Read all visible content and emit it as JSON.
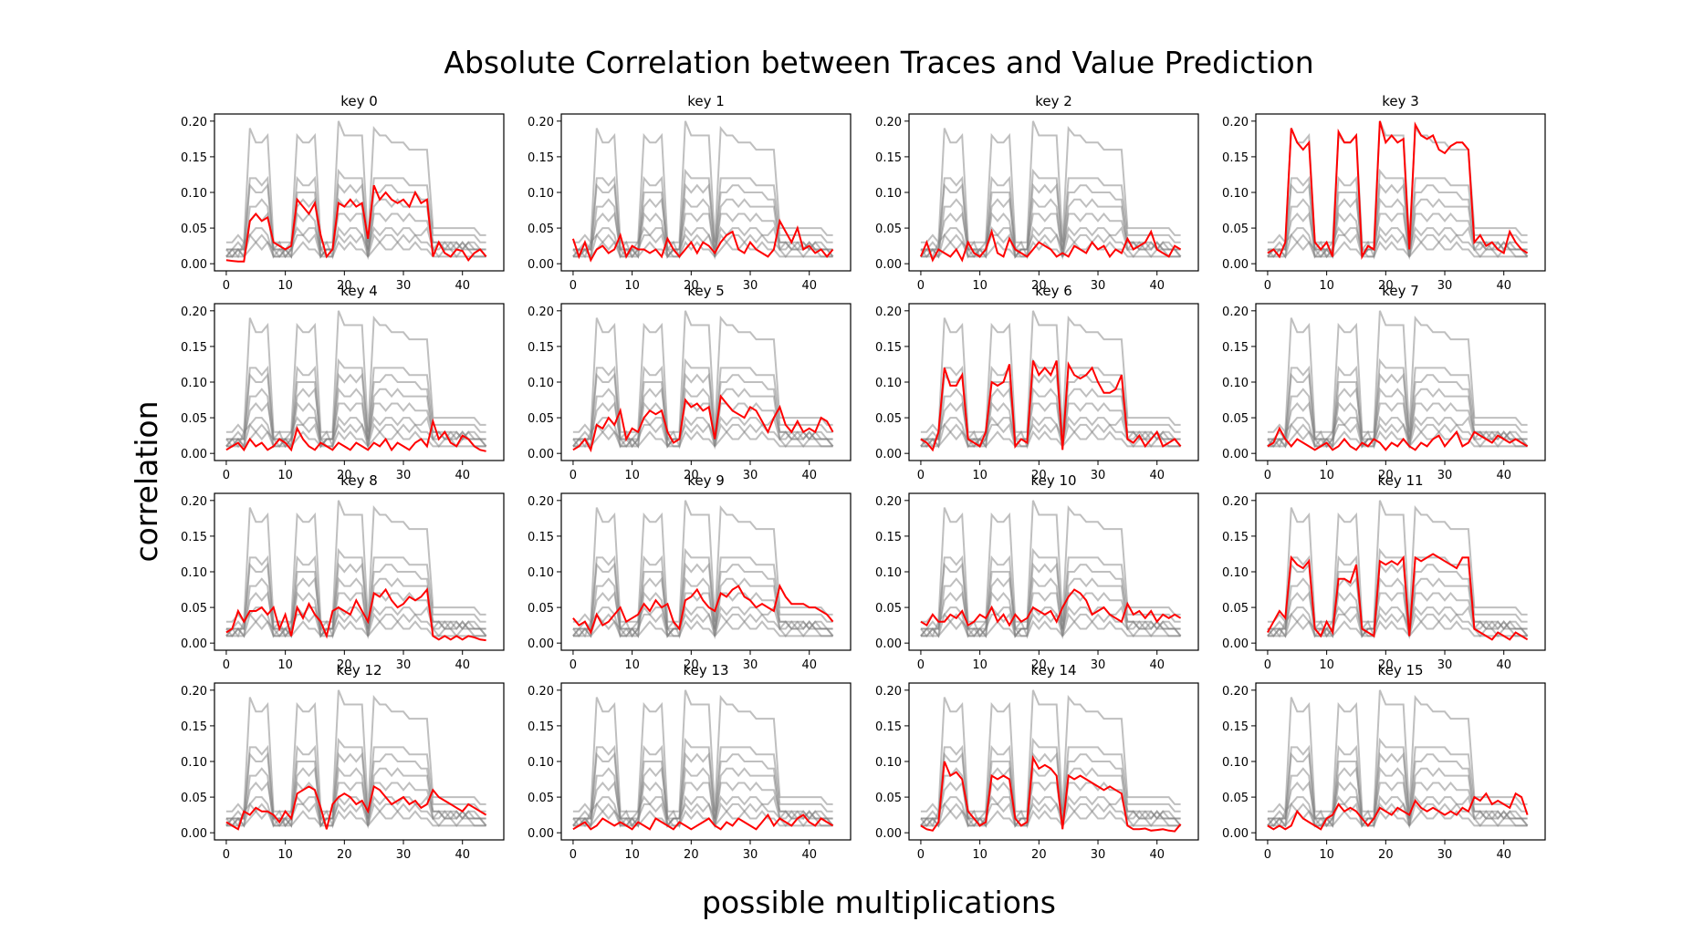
{
  "title": "Absolute Correlation between Traces and Value Prediction",
  "xlabel": "possible multiplications",
  "ylabel": "correlation",
  "chart_data": {
    "type": "line",
    "title": "Absolute Correlation between Traces and Value Prediction",
    "xlabel": "possible multiplications",
    "ylabel": "correlation",
    "xlim": [
      -2,
      47
    ],
    "ylim": [
      -0.01,
      0.21
    ],
    "xticks": [
      0,
      10,
      20,
      30,
      40
    ],
    "yticks": [
      0.0,
      0.05,
      0.1,
      0.15,
      0.2
    ],
    "grid": false,
    "colors": {
      "highlight": "#ff0000",
      "background": "#808080"
    },
    "grey_profiles": [
      [
        0.03,
        0.03,
        0.04,
        0.03,
        0.19,
        0.17,
        0.17,
        0.18,
        0.03,
        0.03,
        0.03,
        0.03,
        0.18,
        0.17,
        0.17,
        0.18,
        0.03,
        0.03,
        0.03,
        0.2,
        0.18,
        0.18,
        0.18,
        0.18,
        0.03,
        0.19,
        0.18,
        0.18,
        0.17,
        0.17,
        0.17,
        0.16,
        0.16,
        0.16,
        0.16,
        0.05,
        0.05,
        0.05,
        0.05,
        0.05,
        0.05,
        0.05,
        0.05,
        0.04,
        0.04
      ],
      [
        0.02,
        0.02,
        0.03,
        0.02,
        0.12,
        0.12,
        0.11,
        0.12,
        0.02,
        0.02,
        0.02,
        0.02,
        0.12,
        0.11,
        0.11,
        0.12,
        0.02,
        0.02,
        0.02,
        0.13,
        0.12,
        0.12,
        0.12,
        0.12,
        0.02,
        0.12,
        0.12,
        0.12,
        0.12,
        0.12,
        0.12,
        0.11,
        0.11,
        0.11,
        0.11,
        0.04,
        0.04,
        0.04,
        0.04,
        0.04,
        0.04,
        0.04,
        0.04,
        0.03,
        0.03
      ],
      [
        0.01,
        0.02,
        0.02,
        0.02,
        0.11,
        0.1,
        0.1,
        0.11,
        0.02,
        0.01,
        0.02,
        0.01,
        0.1,
        0.1,
        0.1,
        0.1,
        0.01,
        0.02,
        0.02,
        0.11,
        0.1,
        0.11,
        0.1,
        0.11,
        0.02,
        0.1,
        0.1,
        0.11,
        0.11,
        0.1,
        0.1,
        0.1,
        0.1,
        0.09,
        0.09,
        0.03,
        0.03,
        0.03,
        0.03,
        0.02,
        0.03,
        0.02,
        0.02,
        0.02,
        0.02
      ],
      [
        0.02,
        0.01,
        0.02,
        0.01,
        0.08,
        0.08,
        0.09,
        0.08,
        0.01,
        0.02,
        0.01,
        0.02,
        0.08,
        0.09,
        0.08,
        0.09,
        0.02,
        0.01,
        0.01,
        0.09,
        0.08,
        0.08,
        0.09,
        0.08,
        0.01,
        0.08,
        0.09,
        0.09,
        0.08,
        0.09,
        0.08,
        0.08,
        0.08,
        0.08,
        0.08,
        0.02,
        0.02,
        0.03,
        0.02,
        0.03,
        0.02,
        0.03,
        0.02,
        0.02,
        0.01
      ],
      [
        0.01,
        0.01,
        0.02,
        0.02,
        0.06,
        0.07,
        0.06,
        0.07,
        0.02,
        0.02,
        0.02,
        0.01,
        0.07,
        0.06,
        0.07,
        0.06,
        0.01,
        0.02,
        0.02,
        0.07,
        0.07,
        0.06,
        0.07,
        0.07,
        0.01,
        0.07,
        0.07,
        0.06,
        0.07,
        0.07,
        0.06,
        0.07,
        0.06,
        0.06,
        0.06,
        0.03,
        0.03,
        0.02,
        0.03,
        0.03,
        0.02,
        0.03,
        0.03,
        0.02,
        0.02
      ],
      [
        0.02,
        0.02,
        0.01,
        0.03,
        0.04,
        0.05,
        0.05,
        0.04,
        0.01,
        0.01,
        0.02,
        0.03,
        0.05,
        0.04,
        0.05,
        0.05,
        0.02,
        0.03,
        0.01,
        0.05,
        0.04,
        0.05,
        0.05,
        0.04,
        0.02,
        0.05,
        0.04,
        0.05,
        0.05,
        0.04,
        0.05,
        0.05,
        0.04,
        0.04,
        0.05,
        0.02,
        0.03,
        0.02,
        0.02,
        0.02,
        0.03,
        0.02,
        0.02,
        0.02,
        0.01
      ],
      [
        0.01,
        0.02,
        0.02,
        0.01,
        0.04,
        0.03,
        0.04,
        0.03,
        0.02,
        0.03,
        0.01,
        0.02,
        0.04,
        0.04,
        0.03,
        0.04,
        0.01,
        0.02,
        0.02,
        0.04,
        0.03,
        0.04,
        0.03,
        0.04,
        0.01,
        0.04,
        0.03,
        0.04,
        0.04,
        0.03,
        0.04,
        0.03,
        0.04,
        0.03,
        0.03,
        0.02,
        0.01,
        0.02,
        0.02,
        0.01,
        0.02,
        0.02,
        0.01,
        0.01,
        0.01
      ],
      [
        0.01,
        0.01,
        0.01,
        0.01,
        0.02,
        0.03,
        0.02,
        0.03,
        0.01,
        0.01,
        0.01,
        0.01,
        0.02,
        0.03,
        0.02,
        0.02,
        0.01,
        0.01,
        0.01,
        0.03,
        0.02,
        0.03,
        0.02,
        0.02,
        0.01,
        0.02,
        0.03,
        0.02,
        0.02,
        0.03,
        0.02,
        0.02,
        0.03,
        0.02,
        0.02,
        0.01,
        0.01,
        0.01,
        0.01,
        0.01,
        0.01,
        0.01,
        0.01,
        0.01,
        0.01
      ]
    ],
    "panels": [
      {
        "title": "key 0",
        "red": [
          0.005,
          0.004,
          0.003,
          0.003,
          0.06,
          0.07,
          0.06,
          0.065,
          0.03,
          0.025,
          0.02,
          0.025,
          0.09,
          0.08,
          0.07,
          0.085,
          0.04,
          0.01,
          0.02,
          0.085,
          0.08,
          0.09,
          0.08,
          0.085,
          0.035,
          0.11,
          0.09,
          0.1,
          0.09,
          0.085,
          0.09,
          0.08,
          0.1,
          0.085,
          0.09,
          0.01,
          0.03,
          0.015,
          0.01,
          0.02,
          0.018,
          0.005,
          0.015,
          0.02,
          0.01
        ]
      },
      {
        "title": "key 1",
        "red": [
          0.035,
          0.01,
          0.03,
          0.005,
          0.02,
          0.025,
          0.015,
          0.02,
          0.04,
          0.01,
          0.025,
          0.02,
          0.02,
          0.015,
          0.02,
          0.01,
          0.035,
          0.02,
          0.01,
          0.02,
          0.03,
          0.015,
          0.03,
          0.025,
          0.015,
          0.03,
          0.04,
          0.045,
          0.02,
          0.015,
          0.03,
          0.02,
          0.015,
          0.01,
          0.02,
          0.06,
          0.045,
          0.03,
          0.05,
          0.02,
          0.025,
          0.015,
          0.02,
          0.01,
          0.02
        ]
      },
      {
        "title": "key 2",
        "red": [
          0.01,
          0.03,
          0.005,
          0.02,
          0.015,
          0.01,
          0.02,
          0.005,
          0.03,
          0.015,
          0.01,
          0.02,
          0.045,
          0.015,
          0.01,
          0.035,
          0.02,
          0.015,
          0.01,
          0.02,
          0.03,
          0.025,
          0.02,
          0.01,
          0.015,
          0.01,
          0.025,
          0.02,
          0.015,
          0.03,
          0.02,
          0.025,
          0.01,
          0.02,
          0.015,
          0.035,
          0.02,
          0.025,
          0.03,
          0.045,
          0.02,
          0.015,
          0.01,
          0.025,
          0.02
        ]
      },
      {
        "title": "key 3",
        "red": [
          0.015,
          0.02,
          0.01,
          0.03,
          0.19,
          0.17,
          0.16,
          0.17,
          0.03,
          0.02,
          0.03,
          0.01,
          0.185,
          0.17,
          0.17,
          0.18,
          0.01,
          0.025,
          0.02,
          0.2,
          0.17,
          0.18,
          0.17,
          0.175,
          0.02,
          0.195,
          0.18,
          0.175,
          0.18,
          0.16,
          0.155,
          0.165,
          0.17,
          0.17,
          0.16,
          0.03,
          0.04,
          0.025,
          0.03,
          0.02,
          0.015,
          0.045,
          0.03,
          0.02,
          0.015
        ]
      },
      {
        "title": "key 4",
        "red": [
          0.005,
          0.01,
          0.015,
          0.005,
          0.02,
          0.01,
          0.015,
          0.005,
          0.01,
          0.02,
          0.015,
          0.005,
          0.035,
          0.02,
          0.01,
          0.005,
          0.015,
          0.01,
          0.005,
          0.015,
          0.01,
          0.005,
          0.015,
          0.01,
          0.005,
          0.015,
          0.01,
          0.02,
          0.005,
          0.015,
          0.01,
          0.005,
          0.015,
          0.02,
          0.01,
          0.045,
          0.02,
          0.03,
          0.015,
          0.01,
          0.025,
          0.02,
          0.01,
          0.005,
          0.003
        ]
      },
      {
        "title": "key 5",
        "red": [
          0.005,
          0.01,
          0.02,
          0.005,
          0.04,
          0.035,
          0.05,
          0.04,
          0.06,
          0.02,
          0.035,
          0.03,
          0.05,
          0.06,
          0.055,
          0.06,
          0.03,
          0.015,
          0.02,
          0.075,
          0.065,
          0.07,
          0.06,
          0.065,
          0.02,
          0.08,
          0.07,
          0.06,
          0.055,
          0.05,
          0.065,
          0.06,
          0.045,
          0.03,
          0.05,
          0.065,
          0.04,
          0.03,
          0.045,
          0.03,
          0.035,
          0.03,
          0.05,
          0.045,
          0.03
        ]
      },
      {
        "title": "key 6",
        "red": [
          0.02,
          0.015,
          0.005,
          0.03,
          0.12,
          0.095,
          0.095,
          0.11,
          0.02,
          0.015,
          0.01,
          0.03,
          0.1,
          0.095,
          0.1,
          0.125,
          0.01,
          0.02,
          0.015,
          0.13,
          0.11,
          0.12,
          0.11,
          0.13,
          0.005,
          0.125,
          0.11,
          0.105,
          0.11,
          0.12,
          0.1,
          0.085,
          0.085,
          0.09,
          0.11,
          0.02,
          0.015,
          0.025,
          0.01,
          0.02,
          0.03,
          0.01,
          0.015,
          0.02,
          0.01
        ]
      },
      {
        "title": "key 7",
        "red": [
          0.01,
          0.015,
          0.035,
          0.02,
          0.01,
          0.02,
          0.015,
          0.01,
          0.005,
          0.01,
          0.015,
          0.005,
          0.01,
          0.02,
          0.01,
          0.005,
          0.015,
          0.01,
          0.02,
          0.015,
          0.005,
          0.015,
          0.01,
          0.02,
          0.01,
          0.005,
          0.015,
          0.01,
          0.02,
          0.025,
          0.01,
          0.02,
          0.03,
          0.01,
          0.015,
          0.03,
          0.025,
          0.02,
          0.015,
          0.025,
          0.02,
          0.015,
          0.02,
          0.015,
          0.01
        ]
      },
      {
        "title": "key 8",
        "red": [
          0.015,
          0.02,
          0.045,
          0.03,
          0.045,
          0.045,
          0.05,
          0.04,
          0.05,
          0.02,
          0.04,
          0.01,
          0.05,
          0.035,
          0.055,
          0.04,
          0.03,
          0.01,
          0.045,
          0.05,
          0.045,
          0.04,
          0.06,
          0.045,
          0.03,
          0.07,
          0.065,
          0.075,
          0.06,
          0.05,
          0.055,
          0.065,
          0.06,
          0.065,
          0.075,
          0.01,
          0.005,
          0.01,
          0.005,
          0.01,
          0.005,
          0.01,
          0.008,
          0.005,
          0.004
        ]
      },
      {
        "title": "key 9",
        "red": [
          0.035,
          0.025,
          0.03,
          0.015,
          0.04,
          0.025,
          0.03,
          0.04,
          0.05,
          0.03,
          0.035,
          0.04,
          0.055,
          0.045,
          0.06,
          0.05,
          0.055,
          0.03,
          0.02,
          0.06,
          0.065,
          0.075,
          0.06,
          0.05,
          0.045,
          0.07,
          0.065,
          0.075,
          0.08,
          0.065,
          0.06,
          0.05,
          0.055,
          0.05,
          0.045,
          0.08,
          0.065,
          0.055,
          0.055,
          0.055,
          0.05,
          0.05,
          0.045,
          0.04,
          0.03
        ]
      },
      {
        "title": "key 10",
        "red": [
          0.03,
          0.025,
          0.04,
          0.03,
          0.03,
          0.04,
          0.035,
          0.045,
          0.025,
          0.03,
          0.04,
          0.035,
          0.05,
          0.03,
          0.04,
          0.025,
          0.04,
          0.03,
          0.035,
          0.05,
          0.045,
          0.04,
          0.045,
          0.03,
          0.05,
          0.065,
          0.075,
          0.07,
          0.06,
          0.04,
          0.045,
          0.05,
          0.04,
          0.035,
          0.03,
          0.055,
          0.04,
          0.045,
          0.035,
          0.045,
          0.03,
          0.04,
          0.035,
          0.04,
          0.035
        ]
      },
      {
        "title": "key 11",
        "red": [
          0.015,
          0.03,
          0.045,
          0.035,
          0.12,
          0.11,
          0.105,
          0.115,
          0.02,
          0.01,
          0.03,
          0.015,
          0.09,
          0.09,
          0.085,
          0.11,
          0.02,
          0.015,
          0.01,
          0.115,
          0.11,
          0.115,
          0.11,
          0.12,
          0.01,
          0.12,
          0.115,
          0.12,
          0.125,
          0.12,
          0.115,
          0.11,
          0.105,
          0.12,
          0.12,
          0.02,
          0.015,
          0.01,
          0.005,
          0.015,
          0.01,
          0.005,
          0.015,
          0.01,
          0.005
        ]
      },
      {
        "title": "key 12",
        "red": [
          0.015,
          0.01,
          0.005,
          0.03,
          0.025,
          0.035,
          0.03,
          0.03,
          0.025,
          0.015,
          0.03,
          0.02,
          0.055,
          0.06,
          0.065,
          0.06,
          0.035,
          0.005,
          0.04,
          0.05,
          0.055,
          0.05,
          0.04,
          0.045,
          0.03,
          0.065,
          0.06,
          0.05,
          0.04,
          0.045,
          0.05,
          0.04,
          0.045,
          0.035,
          0.04,
          0.06,
          0.05,
          0.045,
          0.04,
          0.035,
          0.03,
          0.04,
          0.035,
          0.03,
          0.025
        ]
      },
      {
        "title": "key 13",
        "red": [
          0.005,
          0.01,
          0.015,
          0.005,
          0.01,
          0.02,
          0.015,
          0.01,
          0.015,
          0.01,
          0.005,
          0.015,
          0.01,
          0.005,
          0.02,
          0.015,
          0.01,
          0.005,
          0.015,
          0.01,
          0.005,
          0.01,
          0.015,
          0.02,
          0.01,
          0.005,
          0.015,
          0.01,
          0.02,
          0.015,
          0.01,
          0.005,
          0.015,
          0.025,
          0.01,
          0.02,
          0.015,
          0.01,
          0.02,
          0.025,
          0.015,
          0.01,
          0.02,
          0.015,
          0.01
        ]
      },
      {
        "title": "key 14",
        "red": [
          0.01,
          0.005,
          0.003,
          0.015,
          0.1,
          0.08,
          0.085,
          0.075,
          0.03,
          0.02,
          0.01,
          0.015,
          0.08,
          0.075,
          0.08,
          0.075,
          0.02,
          0.01,
          0.015,
          0.105,
          0.09,
          0.095,
          0.09,
          0.08,
          0.005,
          0.08,
          0.075,
          0.08,
          0.075,
          0.07,
          0.065,
          0.06,
          0.065,
          0.06,
          0.055,
          0.01,
          0.005,
          0.005,
          0.006,
          0.003,
          0.004,
          0.005,
          0.003,
          0.002,
          0.012
        ]
      },
      {
        "title": "key 15",
        "red": [
          0.01,
          0.005,
          0.01,
          0.005,
          0.01,
          0.03,
          0.02,
          0.015,
          0.01,
          0.005,
          0.02,
          0.025,
          0.04,
          0.03,
          0.035,
          0.03,
          0.02,
          0.01,
          0.02,
          0.035,
          0.03,
          0.025,
          0.035,
          0.03,
          0.025,
          0.045,
          0.035,
          0.03,
          0.035,
          0.03,
          0.025,
          0.03,
          0.025,
          0.035,
          0.03,
          0.05,
          0.045,
          0.055,
          0.04,
          0.045,
          0.04,
          0.035,
          0.055,
          0.05,
          0.025
        ]
      }
    ]
  }
}
